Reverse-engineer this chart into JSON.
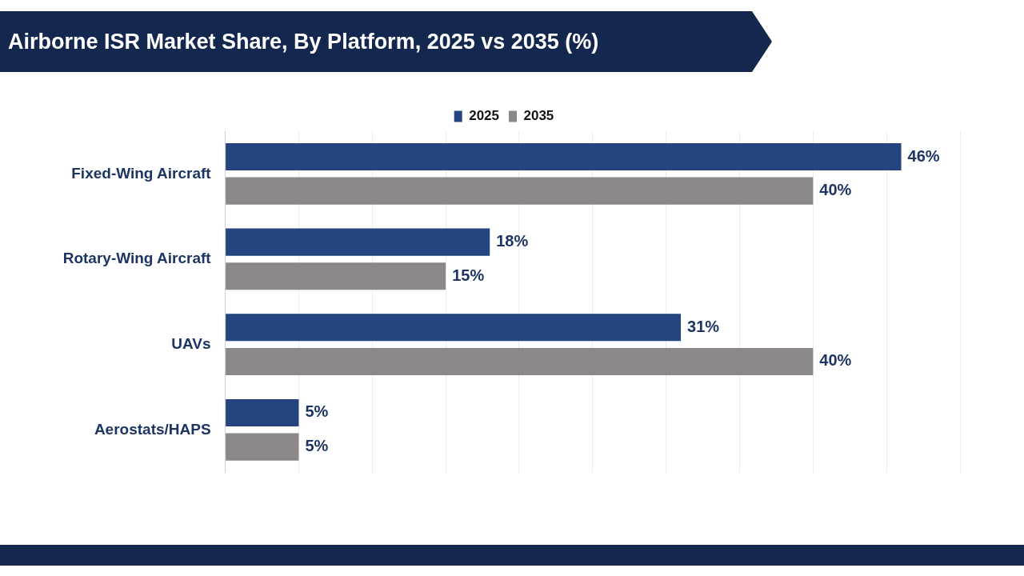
{
  "chart_data": {
    "type": "bar",
    "orientation": "horizontal",
    "title": "Airborne ISR Market Share, By Platform, 2025 vs 2035 (%)",
    "categories": [
      "Fixed-Wing Aircraft",
      "Rotary-Wing Aircraft",
      "UAVs",
      "Aerostats/HAPS"
    ],
    "series": [
      {
        "name": "2025",
        "color": "#24457f",
        "values": [
          46,
          18,
          31,
          5
        ],
        "value_labels": [
          "46%",
          "18%",
          "31%",
          "5%"
        ]
      },
      {
        "name": "2035",
        "color": "#8c8887",
        "values": [
          40,
          15,
          40,
          5
        ],
        "value_labels": [
          "40%",
          "15%",
          "40%",
          "5%"
        ]
      }
    ],
    "xlim": [
      0,
      50
    ],
    "xticks": [
      {
        "value": 0,
        "label": null
      },
      {
        "value": 5,
        "label": null
      },
      {
        "value": 10,
        "label": null
      },
      {
        "value": 15,
        "label": null
      },
      {
        "value": 20,
        "label": null
      },
      {
        "value": 25,
        "label": null
      },
      {
        "value": 30,
        "label": null
      },
      {
        "value": 35,
        "label": null
      },
      {
        "value": 40,
        "label": null
      },
      {
        "value": 45,
        "label": null
      },
      {
        "value": 50,
        "label": null
      }
    ],
    "tick_labels": "y",
    "grid": "x",
    "legend": "top"
  }
}
